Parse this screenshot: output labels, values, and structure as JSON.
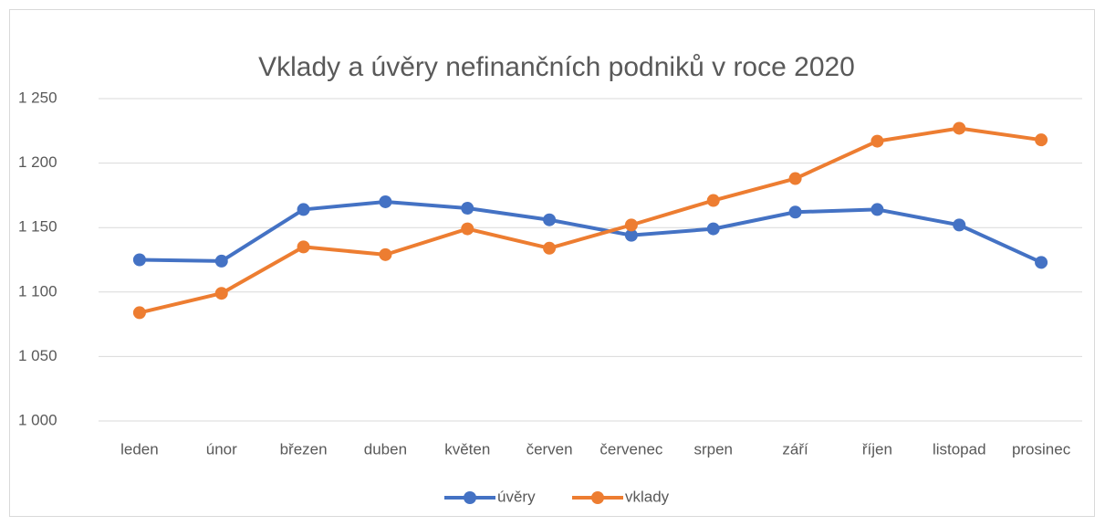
{
  "chart_data": {
    "type": "line",
    "title": "Vklady a úvěry nefinančních podniků v roce 2020",
    "categories": [
      "leden",
      "únor",
      "březen",
      "duben",
      "květen",
      "červen",
      "červenec",
      "srpen",
      "září",
      "říjen",
      "listopad",
      "prosinec"
    ],
    "series": [
      {
        "name": "úvěry",
        "color": "#4472c4",
        "values": [
          1125,
          1124,
          1164,
          1170,
          1165,
          1156,
          1144,
          1149,
          1162,
          1164,
          1152,
          1123
        ]
      },
      {
        "name": "vklady",
        "color": "#ed7d31",
        "values": [
          1084,
          1099,
          1135,
          1129,
          1149,
          1134,
          1152,
          1171,
          1188,
          1217,
          1227,
          1218
        ]
      }
    ],
    "ylim": [
      1000,
      1250
    ],
    "yticks": [
      {
        "value": 1000,
        "label": "1 000"
      },
      {
        "value": 1050,
        "label": "1 050"
      },
      {
        "value": 1100,
        "label": "1 100"
      },
      {
        "value": 1150,
        "label": "1 150"
      },
      {
        "value": 1200,
        "label": "1 200"
      },
      {
        "value": 1250,
        "label": "1 250"
      }
    ],
    "grid": true,
    "legend": "bottom"
  }
}
